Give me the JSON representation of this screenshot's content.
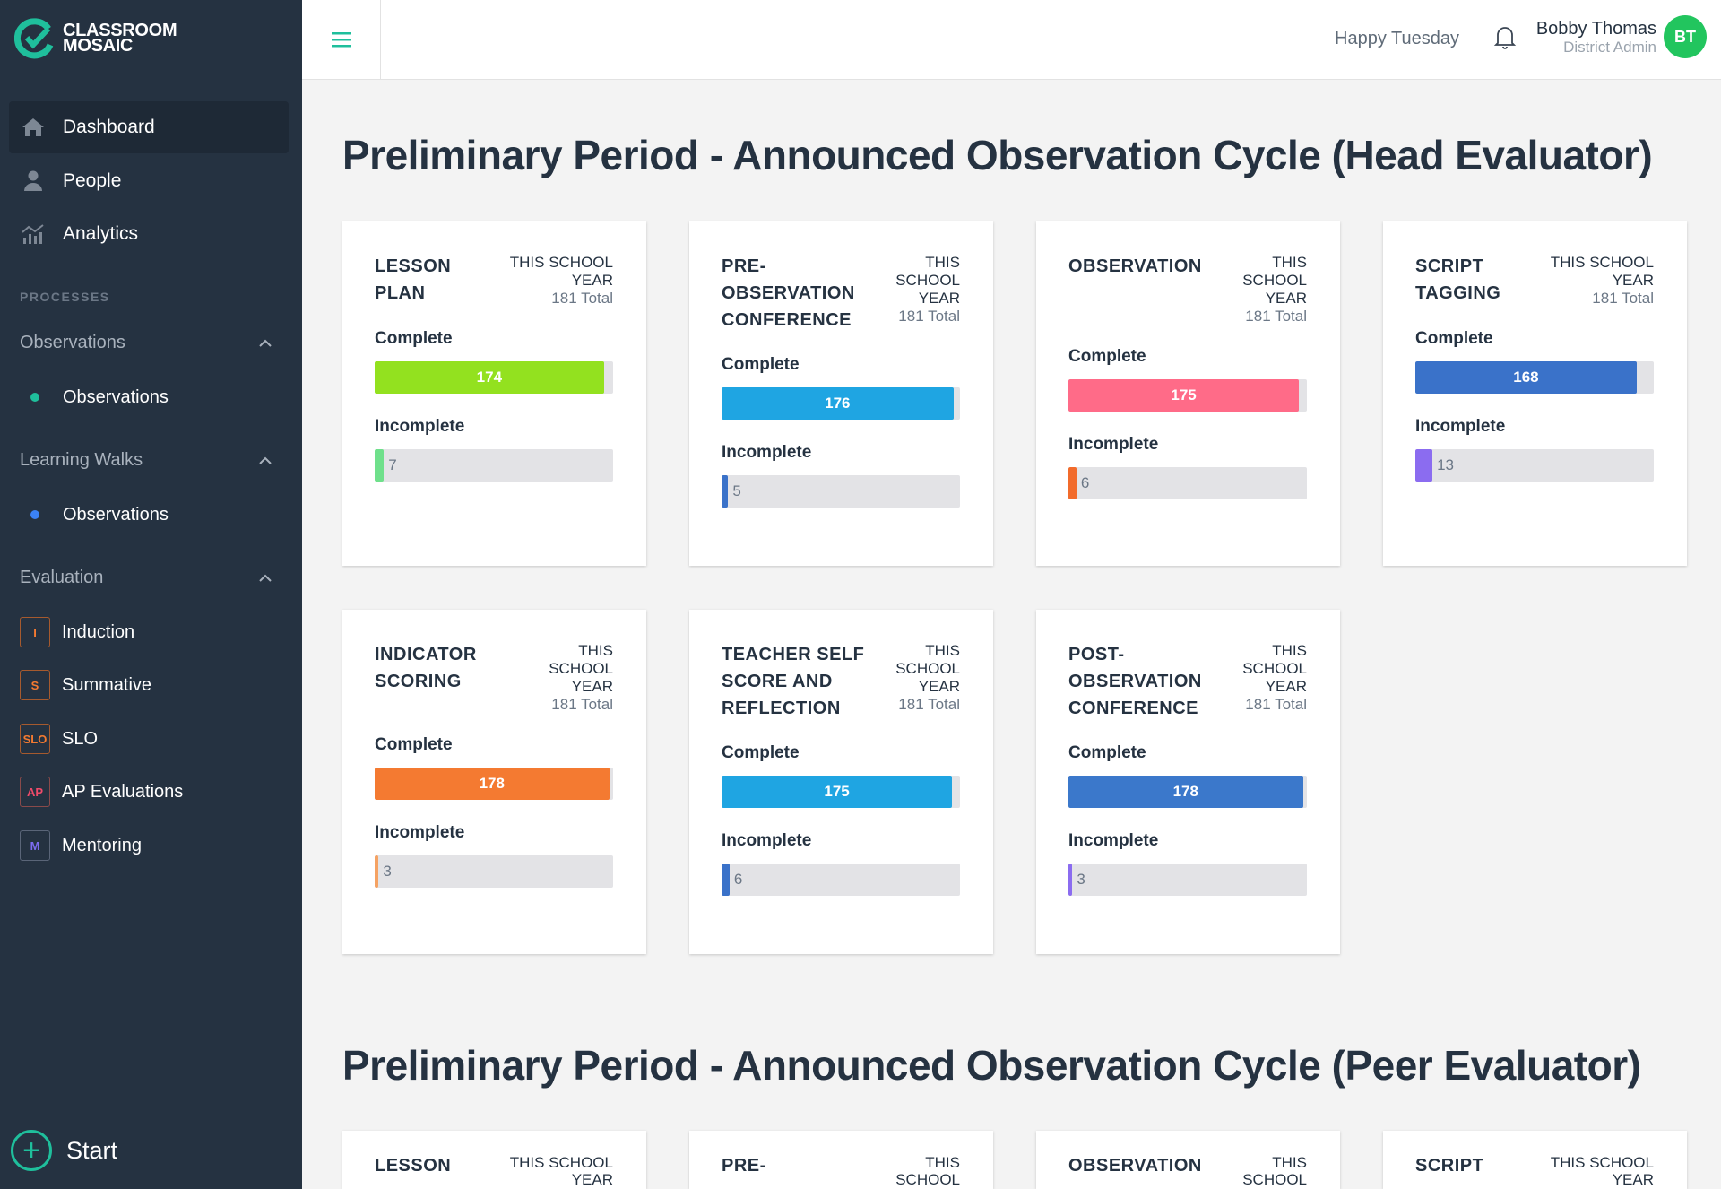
{
  "brand": {
    "line1": "CLASSROOM",
    "line2": "MOSAIC",
    "accent": "#1fbf9c"
  },
  "sidebar": {
    "nav": [
      {
        "label": "Dashboard",
        "icon": "home-icon"
      },
      {
        "label": "People",
        "icon": "person-icon"
      },
      {
        "label": "Analytics",
        "icon": "analytics-icon"
      }
    ],
    "section": "PROCESSES",
    "groups": [
      {
        "label": "Observations",
        "items": [
          {
            "label": "Observations",
            "color": "#1fbf9c"
          }
        ]
      },
      {
        "label": "Learning Walks",
        "items": [
          {
            "label": "Observations",
            "color": "#3b82f6"
          }
        ]
      },
      {
        "label": "Evaluation",
        "items": [
          {
            "label": "Induction",
            "badge": "I",
            "color": "#f47a31",
            "border": "#a65a2e"
          },
          {
            "label": "Summative",
            "badge": "S",
            "color": "#f47a31",
            "border": "#a65a2e"
          },
          {
            "label": "SLO",
            "badge": "SLO",
            "color": "#f47a31",
            "border": "#a65a2e"
          },
          {
            "label": "AP Evaluations",
            "badge": "AP",
            "color": "#ef4b6a",
            "border": "#8a4a4a"
          },
          {
            "label": "Mentoring",
            "badge": "M",
            "color": "#7c6cf0",
            "border": "#5a6578"
          }
        ]
      }
    ],
    "start": "Start"
  },
  "header": {
    "greeting": "Happy Tuesday",
    "user_name": "Bobby Thomas",
    "user_role": "District Admin",
    "initials": "BT"
  },
  "sections": [
    {
      "title": "Preliminary Period - Announced Observation Cycle (Head Evaluator)",
      "cards": [
        {
          "title": [
            "LESSON",
            "PLAN"
          ],
          "meta": [
            "THIS SCHOOL",
            "YEAR"
          ],
          "total_label": "181 Total",
          "total": 181,
          "complete_label": "Complete",
          "complete": 174,
          "complete_color": "#93e11f",
          "incomplete_label": "Incomplete",
          "incomplete": 7,
          "incomplete_color": "#6fe08b"
        },
        {
          "title": [
            "PRE-",
            "OBSERVATION",
            "CONFERENCE"
          ],
          "meta": [
            "THIS",
            "SCHOOL",
            "YEAR"
          ],
          "total_label": "181 Total",
          "total": 181,
          "complete_label": "Complete",
          "complete": 176,
          "complete_color": "#1fa5e2",
          "incomplete_label": "Incomplete",
          "incomplete": 5,
          "incomplete_color": "#3a72c9"
        },
        {
          "title": [
            "OBSERVATION"
          ],
          "meta": [
            "THIS",
            "SCHOOL",
            "YEAR"
          ],
          "total_label": "181 Total",
          "total": 181,
          "complete_label": "Complete",
          "complete": 175,
          "complete_color": "#ff6b88",
          "incomplete_label": "Incomplete",
          "incomplete": 6,
          "incomplete_color": "#f26b2b"
        },
        {
          "title": [
            "SCRIPT",
            "TAGGING"
          ],
          "meta": [
            "THIS SCHOOL",
            "YEAR"
          ],
          "total_label": "181 Total",
          "total": 181,
          "complete_label": "Complete",
          "complete": 168,
          "complete_color": "#3a72c9",
          "incomplete_label": "Incomplete",
          "incomplete": 13,
          "incomplete_color": "#8b6cf0"
        },
        {
          "title": [
            "INDICATOR",
            "SCORING"
          ],
          "meta": [
            "THIS",
            "SCHOOL",
            "YEAR"
          ],
          "total_label": "181 Total",
          "total": 181,
          "complete_label": "Complete",
          "complete": 178,
          "complete_color": "#f47a31",
          "incomplete_label": "Incomplete",
          "incomplete": 3,
          "incomplete_color": "#f5a263"
        },
        {
          "title": [
            "TEACHER SELF",
            "SCORE AND",
            "REFLECTION"
          ],
          "meta": [
            "THIS",
            "SCHOOL",
            "YEAR"
          ],
          "total_label": "181 Total",
          "total": 181,
          "complete_label": "Complete",
          "complete": 175,
          "complete_color": "#1fa5e2",
          "incomplete_label": "Incomplete",
          "incomplete": 6,
          "incomplete_color": "#3a72c9"
        },
        {
          "title": [
            "POST-",
            "OBSERVATION",
            "CONFERENCE"
          ],
          "meta": [
            "THIS",
            "SCHOOL",
            "YEAR"
          ],
          "total_label": "181 Total",
          "total": 181,
          "complete_label": "Complete",
          "complete": 178,
          "complete_color": "#3b78cb",
          "incomplete_label": "Incomplete",
          "incomplete": 3,
          "incomplete_color": "#8b6cf0"
        }
      ]
    },
    {
      "title": "Preliminary Period - Announced Observation Cycle (Peer Evaluator)",
      "cards": [
        {
          "title": [
            "LESSON"
          ],
          "meta": [
            "THIS SCHOOL",
            "YEAR"
          ]
        },
        {
          "title": [
            "PRE-"
          ],
          "meta": [
            "THIS",
            "SCHOOL"
          ]
        },
        {
          "title": [
            "OBSERVATION"
          ],
          "meta": [
            "THIS",
            "SCHOOL"
          ]
        },
        {
          "title": [
            "SCRIPT"
          ],
          "meta": [
            "THIS SCHOOL",
            "YEAR"
          ]
        }
      ]
    }
  ]
}
